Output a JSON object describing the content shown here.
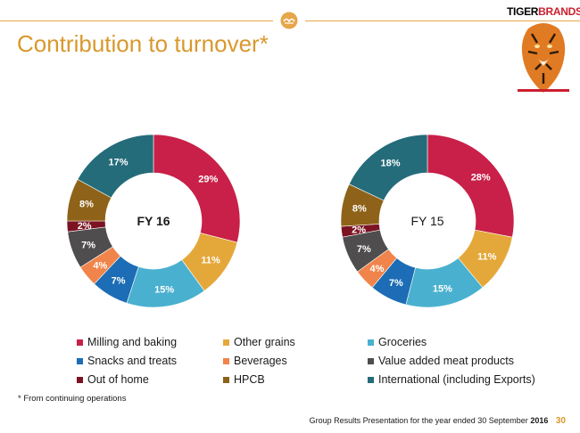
{
  "header": {
    "brand_part1": "TIGER",
    "brand_part2": "BRANDS",
    "title": "Contribution to turnover*"
  },
  "colors": {
    "accent": "#d9982d",
    "milling": "#c82048",
    "other_grains": "#e4a83a",
    "groceries": "#4ab0cf",
    "snacks": "#1c6db5",
    "beverages": "#f0844a",
    "meat": "#4f4d4d",
    "out_of_home": "#7b1322",
    "hpcb": "#8e6319",
    "international": "#246c7a"
  },
  "chart_data": [
    {
      "type": "pie",
      "title": "FY 16",
      "categories": [
        "Milling and baking",
        "Other grains",
        "Groceries",
        "Snacks and treats",
        "Beverages",
        "Value added meat products",
        "Out of home",
        "HPCB",
        "International (including Exports)"
      ],
      "values": [
        29,
        11,
        15,
        7,
        4,
        7,
        2,
        8,
        17
      ],
      "labels": [
        "29%",
        "11%",
        "15%",
        "7%",
        "4%",
        "7%",
        "2%",
        "8%",
        "17%"
      ]
    },
    {
      "type": "pie",
      "title": "FY 15",
      "categories": [
        "Milling and baking",
        "Other grains",
        "Groceries",
        "Snacks and treats",
        "Beverages",
        "Value added meat products",
        "Out of home",
        "HPCB",
        "International (including Exports)"
      ],
      "values": [
        28,
        11,
        15,
        7,
        4,
        7,
        2,
        8,
        18
      ],
      "labels": [
        "28%",
        "11%",
        "15%",
        "7%",
        "4%",
        "7%",
        "2%",
        "8%",
        "18%"
      ]
    }
  ],
  "legend": {
    "items": [
      {
        "label": "Milling and baking",
        "color": "#c82048"
      },
      {
        "label": "Other grains",
        "color": "#e4a83a"
      },
      {
        "label": "Groceries",
        "color": "#4ab0cf"
      },
      {
        "label": "Snacks and treats",
        "color": "#1c6db5"
      },
      {
        "label": "Beverages",
        "color": "#f0844a"
      },
      {
        "label": "Value added meat products",
        "color": "#4f4d4d"
      },
      {
        "label": "Out of home",
        "color": "#7b1322"
      },
      {
        "label": "HPCB",
        "color": "#8e6319"
      },
      {
        "label": "International (including Exports)",
        "color": "#246c7a"
      }
    ]
  },
  "footnote": "*  From continuing operations",
  "footer": {
    "text": "Group Results Presentation for the year ended 30 September",
    "year": "2016",
    "page": "30"
  }
}
